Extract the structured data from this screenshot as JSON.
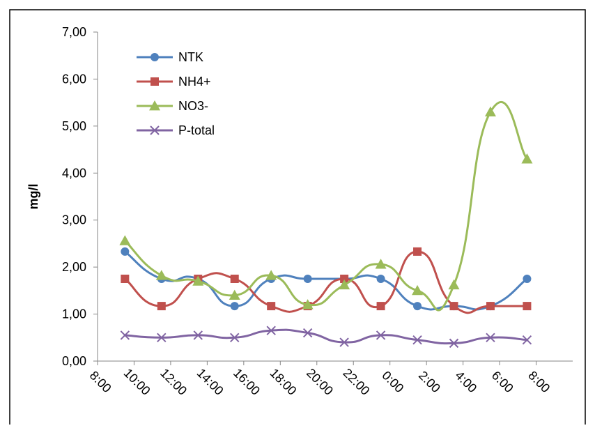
{
  "chart_data": {
    "type": "line",
    "title": "",
    "xlabel": "",
    "ylabel": "mg/l",
    "x_ticks": [
      "8:00",
      "10:00",
      "12:00",
      "14:00",
      "16:00",
      "18:00",
      "20:00",
      "22:00",
      "0:00",
      "2:00",
      "4:00",
      "6:00",
      "8:00"
    ],
    "x_positions": [
      "9:30",
      "11:30",
      "13:30",
      "15:30",
      "17:30",
      "19:30",
      "21:30",
      "23:30",
      "1:30",
      "3:30",
      "5:30",
      "7:30"
    ],
    "y_ticks": [
      "0,00",
      "1,00",
      "2,00",
      "3,00",
      "4,00",
      "5,00",
      "6,00",
      "7,00"
    ],
    "ylim": [
      0,
      7
    ],
    "grid": false,
    "legend_position": "top-left",
    "series": [
      {
        "name": "NTK",
        "color": "#4F81BD",
        "marker": "circle",
        "values": [
          2.33,
          1.75,
          1.75,
          1.17,
          1.75,
          1.75,
          1.75,
          1.75,
          1.17,
          1.17,
          1.17,
          1.75
        ]
      },
      {
        "name": "NH4+",
        "color": "#C0504D",
        "marker": "square",
        "values": [
          1.75,
          1.17,
          1.75,
          1.75,
          1.17,
          1.17,
          1.75,
          1.17,
          2.33,
          1.17,
          1.17,
          1.17
        ]
      },
      {
        "name": "NO3-",
        "color": "#9BBB59",
        "marker": "triangle",
        "values": [
          2.56,
          1.82,
          1.7,
          1.4,
          1.82,
          1.2,
          1.62,
          2.06,
          1.5,
          1.62,
          5.3,
          4.3
        ]
      },
      {
        "name": "P-total",
        "color": "#8064A2",
        "marker": "x",
        "values": [
          0.55,
          0.5,
          0.55,
          0.5,
          0.65,
          0.6,
          0.4,
          0.55,
          0.45,
          0.38,
          0.5,
          0.45
        ]
      }
    ]
  }
}
